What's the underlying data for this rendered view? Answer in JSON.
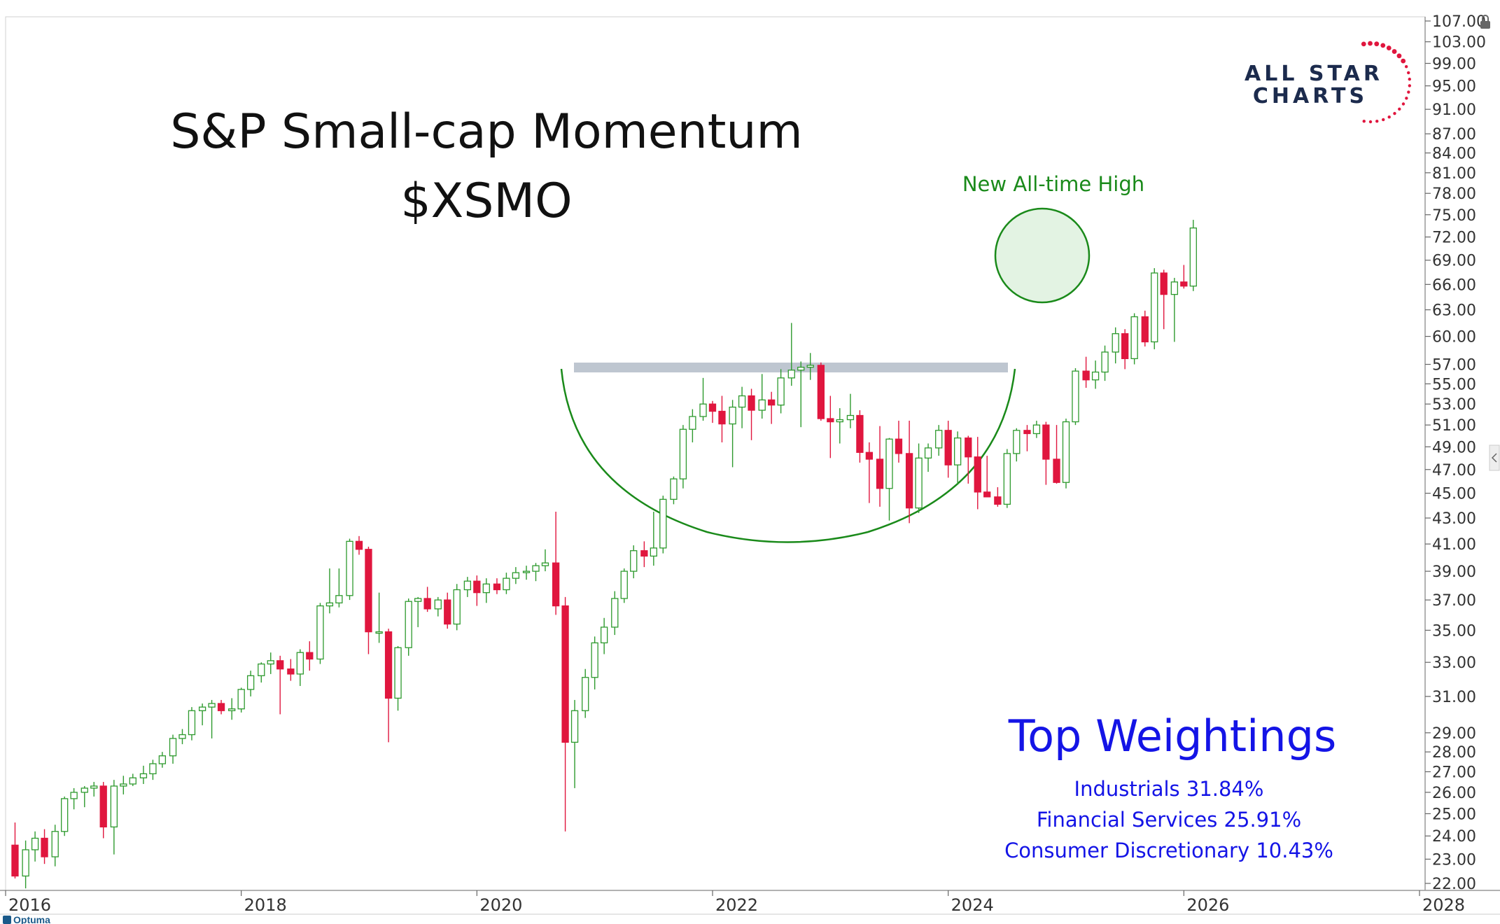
{
  "chart_data": {
    "type": "candlestick",
    "title": "S&P Small-cap Momentum",
    "subtitle": "$XSMO",
    "y_scale": "log",
    "ylim": [
      22,
      107
    ],
    "xlim": [
      2016.0,
      2028.0
    ],
    "y_ticks": [
      "107.00",
      "103.00",
      "99.00",
      "95.00",
      "91.00",
      "87.00",
      "84.00",
      "81.00",
      "78.00",
      "75.00",
      "72.00",
      "69.00",
      "66.00",
      "63.00",
      "60.00",
      "57.00",
      "55.00",
      "53.00",
      "51.00",
      "49.00",
      "47.00",
      "45.00",
      "43.00",
      "41.00",
      "39.00",
      "37.00",
      "35.00",
      "33.00",
      "31.00",
      "29.00",
      "28.00",
      "27.00",
      "26.00",
      "25.00",
      "24.00",
      "23.00",
      "22.00"
    ],
    "x_ticks": [
      {
        "label": "2016",
        "value": 2016.0
      },
      {
        "label": "2018",
        "value": 2018.0
      },
      {
        "label": "2020",
        "value": 2020.0
      },
      {
        "label": "2022",
        "value": 2022.0
      },
      {
        "label": "2024",
        "value": 2024.0
      },
      {
        "label": "2026",
        "value": 2026.0
      },
      {
        "label": "2028",
        "value": 2028.0
      }
    ],
    "candles": [
      [
        2016.08,
        23.6,
        24.6,
        22.2,
        22.3
      ],
      [
        2016.17,
        22.3,
        23.8,
        21.8,
        23.4
      ],
      [
        2016.25,
        23.4,
        24.2,
        22.9,
        23.9
      ],
      [
        2016.33,
        23.9,
        24.3,
        22.8,
        23.1
      ],
      [
        2016.42,
        23.1,
        24.5,
        22.7,
        24.2
      ],
      [
        2016.5,
        24.2,
        25.8,
        24.0,
        25.7
      ],
      [
        2016.58,
        25.7,
        26.2,
        25.2,
        26.0
      ],
      [
        2016.67,
        26.0,
        26.3,
        25.3,
        26.2
      ],
      [
        2016.75,
        26.2,
        26.5,
        25.8,
        26.3
      ],
      [
        2016.83,
        26.3,
        26.5,
        23.9,
        24.4
      ],
      [
        2016.92,
        24.4,
        26.6,
        23.2,
        26.3
      ],
      [
        2017.0,
        26.3,
        26.8,
        25.9,
        26.4
      ],
      [
        2017.08,
        26.4,
        26.9,
        26.3,
        26.7
      ],
      [
        2017.17,
        26.7,
        27.3,
        26.4,
        26.9
      ],
      [
        2017.25,
        26.9,
        27.6,
        26.6,
        27.4
      ],
      [
        2017.33,
        27.4,
        28.0,
        27.2,
        27.8
      ],
      [
        2017.42,
        27.8,
        28.9,
        27.4,
        28.7
      ],
      [
        2017.5,
        28.7,
        29.2,
        28.4,
        28.9
      ],
      [
        2017.58,
        28.9,
        30.4,
        28.6,
        30.2
      ],
      [
        2017.67,
        30.2,
        30.6,
        29.4,
        30.4
      ],
      [
        2017.75,
        30.4,
        30.8,
        28.7,
        30.6
      ],
      [
        2017.83,
        30.6,
        30.8,
        30.0,
        30.2
      ],
      [
        2017.92,
        30.2,
        30.9,
        29.7,
        30.3
      ],
      [
        2018.0,
        30.3,
        31.5,
        30.1,
        31.4
      ],
      [
        2018.08,
        31.4,
        32.5,
        31.0,
        32.2
      ],
      [
        2018.17,
        32.2,
        33.0,
        31.8,
        32.9
      ],
      [
        2018.25,
        32.9,
        33.6,
        32.3,
        33.1
      ],
      [
        2018.33,
        33.1,
        33.4,
        30.0,
        32.6
      ],
      [
        2018.42,
        32.6,
        33.2,
        31.9,
        32.3
      ],
      [
        2018.5,
        32.3,
        33.8,
        31.6,
        33.6
      ],
      [
        2018.58,
        33.6,
        34.3,
        32.5,
        33.2
      ],
      [
        2018.67,
        33.2,
        36.8,
        32.9,
        36.6
      ],
      [
        2018.75,
        36.6,
        39.2,
        36.1,
        36.8
      ],
      [
        2018.83,
        36.8,
        39.2,
        36.5,
        37.3
      ],
      [
        2018.92,
        37.3,
        41.4,
        37.0,
        41.2
      ],
      [
        2019.0,
        41.2,
        41.6,
        40.2,
        40.6
      ],
      [
        2019.08,
        40.6,
        40.8,
        33.5,
        34.9
      ],
      [
        2019.17,
        34.9,
        37.5,
        34.2,
        34.9
      ],
      [
        2019.25,
        34.9,
        35.1,
        28.5,
        30.9
      ],
      [
        2019.33,
        30.9,
        34.0,
        30.2,
        33.9
      ],
      [
        2019.42,
        33.9,
        37.1,
        33.4,
        36.9
      ],
      [
        2019.5,
        36.9,
        37.2,
        35.2,
        37.1
      ],
      [
        2019.58,
        37.1,
        37.9,
        36.2,
        36.4
      ],
      [
        2019.67,
        36.4,
        37.2,
        35.9,
        37.0
      ],
      [
        2019.75,
        37.0,
        37.5,
        35.1,
        35.4
      ],
      [
        2019.83,
        35.4,
        38.1,
        35.0,
        37.7
      ],
      [
        2019.92,
        37.7,
        38.6,
        37.2,
        38.3
      ],
      [
        2020.0,
        38.3,
        38.7,
        36.6,
        37.5
      ],
      [
        2020.08,
        37.5,
        38.5,
        36.8,
        38.1
      ],
      [
        2020.17,
        38.1,
        38.5,
        37.4,
        37.7
      ],
      [
        2020.25,
        37.7,
        38.9,
        37.4,
        38.5
      ],
      [
        2020.33,
        38.5,
        39.3,
        38.1,
        38.9
      ],
      [
        2020.42,
        38.9,
        39.4,
        38.4,
        39.0
      ],
      [
        2020.5,
        39.0,
        39.6,
        38.3,
        39.4
      ],
      [
        2020.58,
        39.4,
        40.6,
        39.0,
        39.6
      ],
      [
        2020.67,
        39.6,
        43.5,
        36.0,
        36.6
      ],
      [
        2020.75,
        36.6,
        37.2,
        24.2,
        28.5
      ],
      [
        2020.83,
        28.5,
        30.8,
        26.2,
        30.2
      ],
      [
        2020.92,
        30.2,
        32.6,
        29.8,
        32.1
      ],
      [
        2021.0,
        32.1,
        34.6,
        31.4,
        34.2
      ],
      [
        2021.08,
        34.2,
        35.8,
        33.5,
        35.2
      ],
      [
        2021.17,
        35.2,
        37.6,
        34.7,
        37.1
      ],
      [
        2021.25,
        37.1,
        39.2,
        36.8,
        39.0
      ],
      [
        2021.33,
        39.0,
        40.9,
        38.5,
        40.5
      ],
      [
        2021.42,
        40.5,
        41.2,
        39.3,
        40.1
      ],
      [
        2021.5,
        40.1,
        43.5,
        39.4,
        40.7
      ],
      [
        2021.58,
        40.7,
        44.8,
        40.3,
        44.5
      ],
      [
        2021.67,
        44.5,
        46.4,
        44.1,
        46.2
      ],
      [
        2021.75,
        46.2,
        51.0,
        45.4,
        50.6
      ],
      [
        2021.83,
        50.6,
        52.5,
        49.4,
        51.8
      ],
      [
        2021.92,
        51.8,
        55.6,
        51.4,
        53.0
      ],
      [
        2022.0,
        53.0,
        53.3,
        51.2,
        52.3
      ],
      [
        2022.08,
        52.3,
        53.8,
        49.4,
        51.1
      ],
      [
        2022.17,
        51.1,
        53.4,
        47.2,
        52.7
      ],
      [
        2022.25,
        52.7,
        54.7,
        50.7,
        53.8
      ],
      [
        2022.33,
        53.8,
        54.5,
        49.6,
        52.4
      ],
      [
        2022.42,
        52.4,
        56.0,
        51.6,
        53.4
      ],
      [
        2022.5,
        53.4,
        54.2,
        51.1,
        52.9
      ],
      [
        2022.58,
        52.9,
        56.5,
        52.1,
        55.6
      ],
      [
        2022.67,
        55.6,
        61.5,
        54.8,
        56.4
      ],
      [
        2022.75,
        56.4,
        57.3,
        50.8,
        56.7
      ],
      [
        2022.83,
        56.7,
        58.2,
        55.4,
        56.9
      ],
      [
        2022.92,
        56.9,
        57.2,
        51.4,
        51.6
      ],
      [
        2023.0,
        51.6,
        53.8,
        48.0,
        51.3
      ],
      [
        2023.08,
        51.3,
        52.6,
        49.3,
        51.5
      ],
      [
        2023.17,
        51.5,
        54.0,
        50.7,
        51.9
      ],
      [
        2023.25,
        51.9,
        52.4,
        47.6,
        48.5
      ],
      [
        2023.33,
        48.5,
        49.4,
        44.2,
        47.9
      ],
      [
        2023.42,
        47.9,
        50.9,
        43.9,
        45.4
      ],
      [
        2023.5,
        45.4,
        49.8,
        42.8,
        49.7
      ],
      [
        2023.58,
        49.7,
        51.4,
        47.6,
        48.4
      ],
      [
        2023.67,
        48.4,
        51.4,
        42.6,
        43.8
      ],
      [
        2023.75,
        43.8,
        49.3,
        43.4,
        48.0
      ],
      [
        2023.83,
        48.0,
        49.3,
        46.8,
        48.9
      ],
      [
        2023.92,
        48.9,
        51.0,
        48.2,
        50.5
      ],
      [
        2024.0,
        50.5,
        51.4,
        46.3,
        47.4
      ],
      [
        2024.08,
        47.4,
        50.4,
        45.7,
        49.8
      ],
      [
        2024.17,
        49.8,
        50.0,
        45.8,
        48.1
      ],
      [
        2024.25,
        48.1,
        49.9,
        43.7,
        45.1
      ],
      [
        2024.33,
        45.1,
        48.2,
        44.7,
        44.7
      ],
      [
        2024.42,
        44.7,
        45.5,
        43.9,
        44.1
      ],
      [
        2024.5,
        44.1,
        48.8,
        43.8,
        48.4
      ],
      [
        2024.58,
        48.4,
        50.7,
        47.7,
        50.5
      ],
      [
        2024.67,
        50.5,
        51.0,
        48.6,
        50.2
      ],
      [
        2024.75,
        50.2,
        51.4,
        49.8,
        51.0
      ],
      [
        2024.83,
        51.0,
        51.3,
        45.7,
        47.9
      ],
      [
        2024.92,
        47.9,
        51.0,
        45.8,
        45.9
      ],
      [
        2025.0,
        45.9,
        51.6,
        45.4,
        51.3
      ],
      [
        2025.08,
        51.3,
        56.6,
        51.0,
        56.3
      ],
      [
        2025.17,
        56.3,
        57.8,
        54.6,
        55.4
      ],
      [
        2025.25,
        55.4,
        57.4,
        54.5,
        56.2
      ],
      [
        2025.33,
        56.2,
        59.0,
        55.3,
        58.3
      ],
      [
        2025.42,
        58.3,
        61.0,
        57.1,
        60.3
      ],
      [
        2025.5,
        60.3,
        60.8,
        56.5,
        57.6
      ],
      [
        2025.58,
        57.6,
        62.6,
        57.0,
        62.2
      ],
      [
        2025.67,
        62.2,
        62.9,
        58.9,
        59.4
      ],
      [
        2025.75,
        59.4,
        68.0,
        58.6,
        67.4
      ],
      [
        2025.83,
        67.4,
        67.8,
        60.8,
        64.8
      ],
      [
        2025.92,
        64.8,
        66.8,
        59.4,
        66.3
      ],
      [
        2026.0,
        66.3,
        68.4,
        65.5,
        65.8
      ],
      [
        2026.08,
        65.8,
        74.3,
        65.2,
        73.2
      ]
    ],
    "annotations": {
      "ath_label": "New All-time High",
      "weightings_title": "Top Weightings",
      "weightings": [
        "Industrials 31.84%",
        "Financial Services 25.91%",
        "Consumer Discretionary 10.43%"
      ]
    },
    "colors": {
      "up": "#2e9a2e",
      "down": "#e0163e",
      "annotation": "#1a8a1a",
      "weightings": "#1414e6",
      "resistance_band": "#b3bcc8"
    }
  },
  "logo": {
    "line1": "ALL STAR",
    "line2": "CHARTS"
  },
  "footer": {
    "brand": "Optuma"
  }
}
